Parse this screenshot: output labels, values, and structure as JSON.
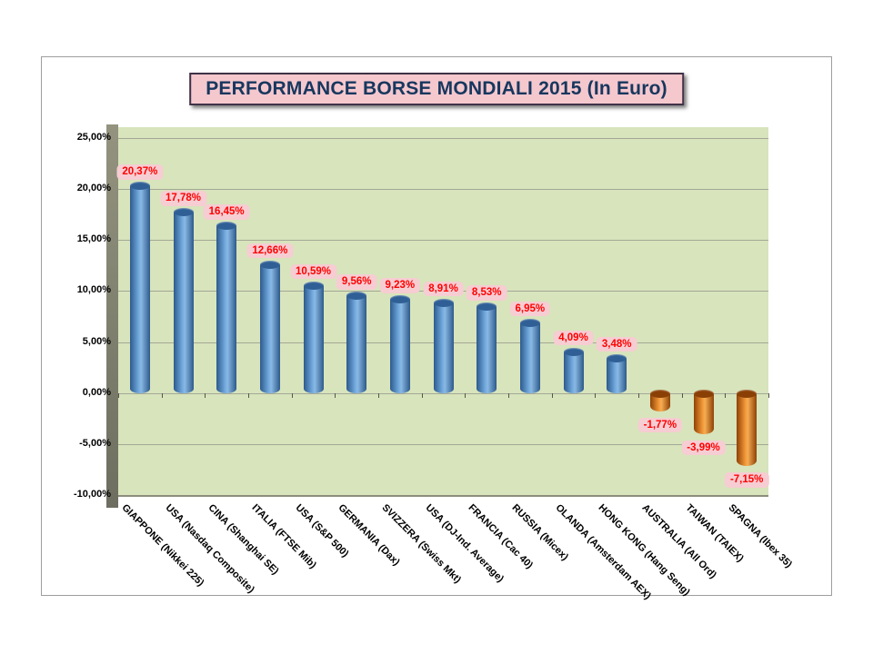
{
  "title": "PERFORMANCE BORSE MONDIALI 2015 (In Euro)",
  "chart_data": {
    "type": "bar",
    "title": "PERFORMANCE BORSE MONDIALI 2015 (In Euro)",
    "categories": [
      "GIAPPONE (Nikkei 225)",
      "USA (Nasdaq Composite)",
      "CINA (Shanghai SE)",
      "ITALIA (FTSE Mib)",
      "USA (S&P 500)",
      "GERMANIA (Dax)",
      "SVIZZERA (Swiss Mkt)",
      "USA (DJ-Ind. Average)",
      "FRANCIA (Cac 40)",
      "RUSSIA (Micex)",
      "OLANDA (Amsterdam AEX)",
      "HONG KONG (Hang Seng)",
      "AUSTRALIA (All Ord)",
      "TAIWAN (TAIEX)",
      "SPAGNA (Ibex 35)"
    ],
    "values": [
      20.37,
      17.78,
      16.45,
      12.66,
      10.59,
      9.56,
      9.23,
      8.91,
      8.53,
      6.95,
      4.09,
      3.48,
      -1.77,
      -3.99,
      -7.15
    ],
    "labels": [
      "20,37%",
      "17,78%",
      "16,45%",
      "12,66%",
      "10,59%",
      "9,56%",
      "9,23%",
      "8,91%",
      "8,53%",
      "6,95%",
      "4,09%",
      "3,48%",
      "-1,77%",
      "-3,99%",
      "-7,15%"
    ],
    "y_ticks": [
      "25,00%",
      "20,00%",
      "15,00%",
      "10,00%",
      "5,00%",
      "0,00%",
      "-5,00%",
      "-10,00%"
    ],
    "ylim": [
      -10,
      25
    ],
    "y_step": 5,
    "grid": true,
    "legend": "none",
    "xlabel": "",
    "ylabel": "",
    "colors": {
      "positive_bar": "#4f81bd",
      "negative_bar": "#e26b0a",
      "plot_background": "#d8e4bc",
      "value_label_background": "#f6cdd2",
      "value_label_text": "#ff0000",
      "title_text": "#17375e",
      "title_background": "#f5c8ce"
    }
  }
}
